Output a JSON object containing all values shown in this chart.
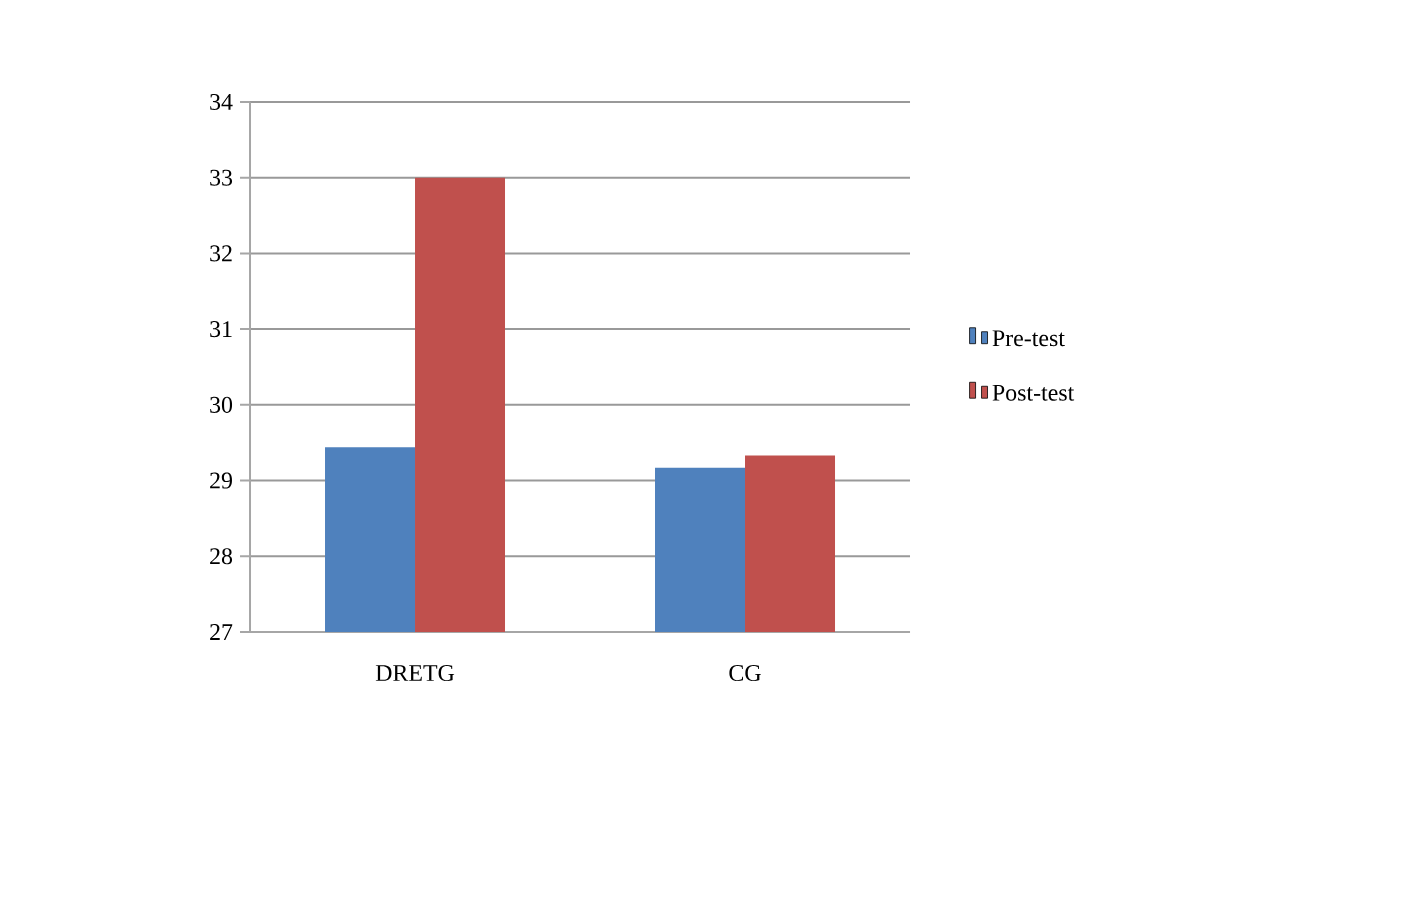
{
  "chart_data": {
    "type": "bar",
    "categories": [
      "DRETG",
      "CG"
    ],
    "series": [
      {
        "name": "Pre-test",
        "color": "#4f81bd",
        "values": [
          29.44,
          29.17
        ]
      },
      {
        "name": "Post-test",
        "color": "#c0504d",
        "values": [
          33.0,
          29.33
        ]
      }
    ],
    "ylim": [
      27,
      34
    ],
    "yticks": [
      27,
      28,
      29,
      30,
      31,
      32,
      33,
      34
    ],
    "grid": "y",
    "legend": "right"
  }
}
